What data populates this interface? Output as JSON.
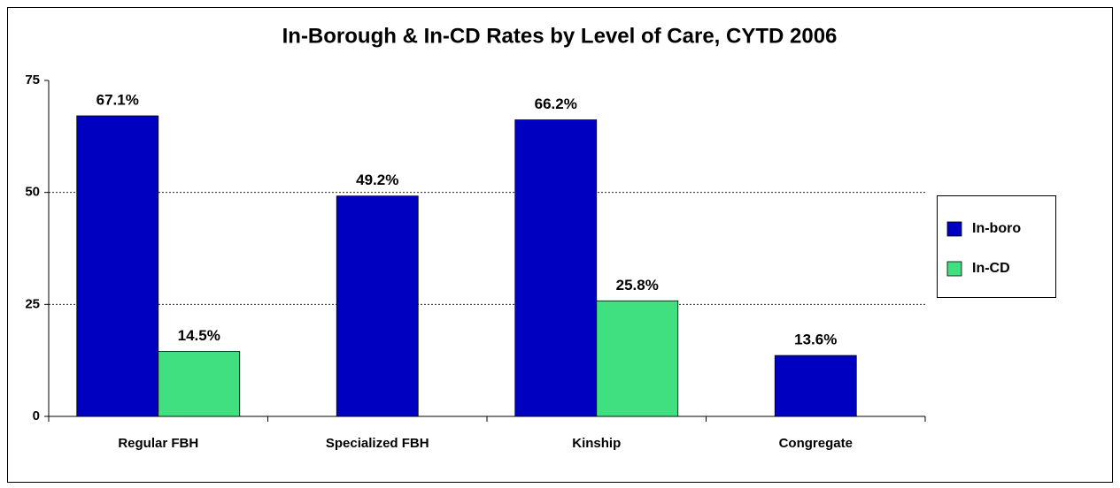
{
  "chart_data": {
    "type": "bar",
    "title": "In-Borough & In-CD Rates by Level of Care, CYTD 2006",
    "categories": [
      "Regular FBH",
      "Specialized FBH",
      "Kinship",
      "Congregate"
    ],
    "series": [
      {
        "name": "In-boro",
        "color": "#0000c0",
        "values": [
          67.1,
          49.2,
          66.2,
          13.6
        ],
        "value_labels": [
          "67.1%",
          "49.2%",
          "66.2%",
          "13.6%"
        ]
      },
      {
        "name": "In-CD",
        "color": "#40e080",
        "values": [
          14.5,
          null,
          25.8,
          null
        ],
        "value_labels": [
          "14.5%",
          null,
          "25.8%",
          null
        ]
      }
    ],
    "ylim": [
      0,
      75
    ],
    "yticks": [
      0,
      25,
      50,
      75
    ],
    "grid": true,
    "legend": "right"
  }
}
